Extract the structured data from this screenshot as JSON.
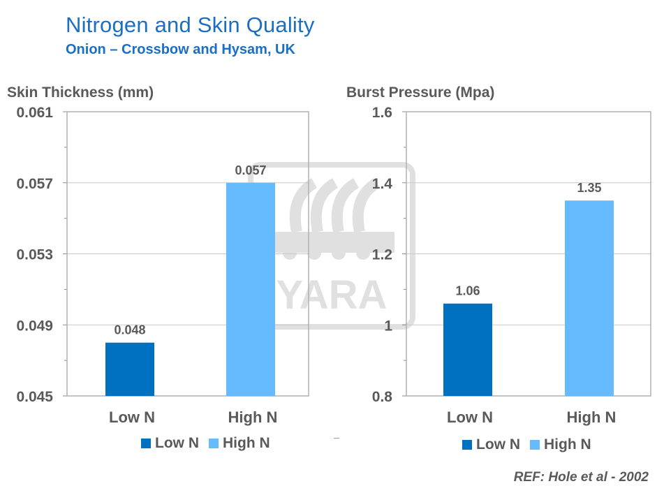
{
  "header": {
    "title": "Nitrogen and Skin Quality",
    "subtitle": "Onion – Crossbow and Hysam, UK"
  },
  "watermark": {
    "text": "YARA"
  },
  "reference": "REF: Hole et al -  2002",
  "colors": {
    "low_n": "#0070c0",
    "high_n": "#66bbff",
    "title": "#1a6fc4",
    "text": "#595959",
    "grid": "#c8c8c8"
  },
  "chart_data": [
    {
      "type": "bar",
      "title": "",
      "ylabel": "Skin Thickness (mm)",
      "categories": [
        "Low N",
        "High N"
      ],
      "values": [
        0.048,
        0.057
      ],
      "value_labels": [
        "0.048",
        "0.057"
      ],
      "ylim": [
        0.045,
        0.061
      ],
      "yticks": [
        0.045,
        0.049,
        0.053,
        0.057,
        0.061
      ],
      "ytick_labels": [
        "0.045",
        "0.049",
        "0.053",
        "0.057",
        "0.061"
      ],
      "legend": [
        "Low N",
        "High N"
      ],
      "grid": true
    },
    {
      "type": "bar",
      "title": "",
      "ylabel": "Burst Pressure  (Mpa)",
      "categories": [
        "Low N",
        "High N"
      ],
      "values": [
        1.06,
        1.35
      ],
      "value_labels": [
        "1.06",
        "1.35"
      ],
      "ylim": [
        0.8,
        1.6
      ],
      "yticks": [
        0.8,
        1.0,
        1.2,
        1.4,
        1.6
      ],
      "ytick_labels": [
        "0.8",
        "1",
        "1.2",
        "1.4",
        "1.6"
      ],
      "legend": [
        "Low N",
        "High N"
      ],
      "grid": true
    }
  ]
}
